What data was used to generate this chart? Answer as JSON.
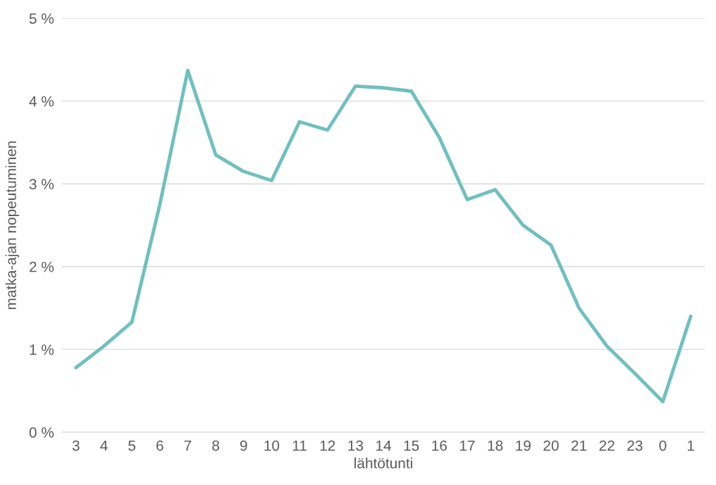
{
  "chart_data": {
    "type": "line",
    "xlabel": "lähtötunti",
    "ylabel": "matka-ajan nopeutuminen",
    "categories": [
      "3",
      "4",
      "5",
      "6",
      "7",
      "8",
      "9",
      "10",
      "11",
      "12",
      "13",
      "14",
      "15",
      "16",
      "17",
      "18",
      "19",
      "20",
      "21",
      "22",
      "23",
      "0",
      "1"
    ],
    "series": [
      {
        "color": "#6fc0bf",
        "values": [
          0.78,
          1.04,
          1.33,
          2.75,
          4.37,
          3.35,
          3.15,
          3.04,
          3.75,
          3.65,
          4.18,
          4.16,
          4.12,
          3.56,
          2.81,
          2.93,
          2.5,
          2.26,
          1.5,
          1.04,
          0.71,
          0.37,
          1.4
        ]
      }
    ],
    "ylim": [
      0,
      5
    ],
    "yticks": [
      {
        "value": 0,
        "label": "0 %"
      },
      {
        "value": 1,
        "label": "1 %"
      },
      {
        "value": 2,
        "label": "2 %"
      },
      {
        "value": 3,
        "label": "3 %"
      },
      {
        "value": 4,
        "label": "4 %"
      },
      {
        "value": 5,
        "label": "5 %"
      }
    ],
    "grid": "y",
    "marker": "none",
    "line_style": "solid"
  }
}
